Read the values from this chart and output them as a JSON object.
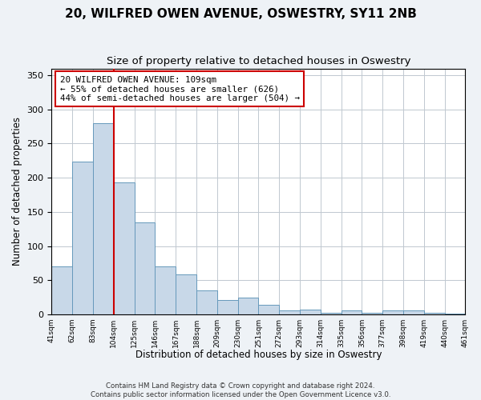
{
  "title": "20, WILFRED OWEN AVENUE, OSWESTRY, SY11 2NB",
  "subtitle": "Size of property relative to detached houses in Oswestry",
  "xlabel": "Distribution of detached houses by size in Oswestry",
  "ylabel": "Number of detached properties",
  "bar_labels": [
    "41sqm",
    "62sqm",
    "83sqm",
    "104sqm",
    "125sqm",
    "146sqm",
    "167sqm",
    "188sqm",
    "209sqm",
    "230sqm",
    "251sqm",
    "272sqm",
    "293sqm",
    "314sqm",
    "335sqm",
    "356sqm",
    "377sqm",
    "398sqm",
    "419sqm",
    "440sqm",
    "461sqm"
  ],
  "bar_values": [
    70,
    224,
    280,
    193,
    135,
    70,
    58,
    35,
    21,
    25,
    14,
    6,
    7,
    2,
    6,
    2,
    6,
    6,
    2,
    1
  ],
  "bar_color": "#c8d8e8",
  "bar_edge_color": "#6699bb",
  "ylim": [
    0,
    360
  ],
  "yticks": [
    0,
    50,
    100,
    150,
    200,
    250,
    300,
    350
  ],
  "vline_x": 3,
  "vline_color": "#cc0000",
  "annotation_title": "20 WILFRED OWEN AVENUE: 109sqm",
  "annotation_line1": "← 55% of detached houses are smaller (626)",
  "annotation_line2": "44% of semi-detached houses are larger (504) →",
  "annotation_box_color": "#ffffff",
  "annotation_box_edge_color": "#cc0000",
  "footer_line1": "Contains HM Land Registry data © Crown copyright and database right 2024.",
  "footer_line2": "Contains public sector information licensed under the Open Government Licence v3.0.",
  "background_color": "#eef2f6",
  "plot_background_color": "#ffffff",
  "title_fontsize": 11,
  "subtitle_fontsize": 9.5
}
